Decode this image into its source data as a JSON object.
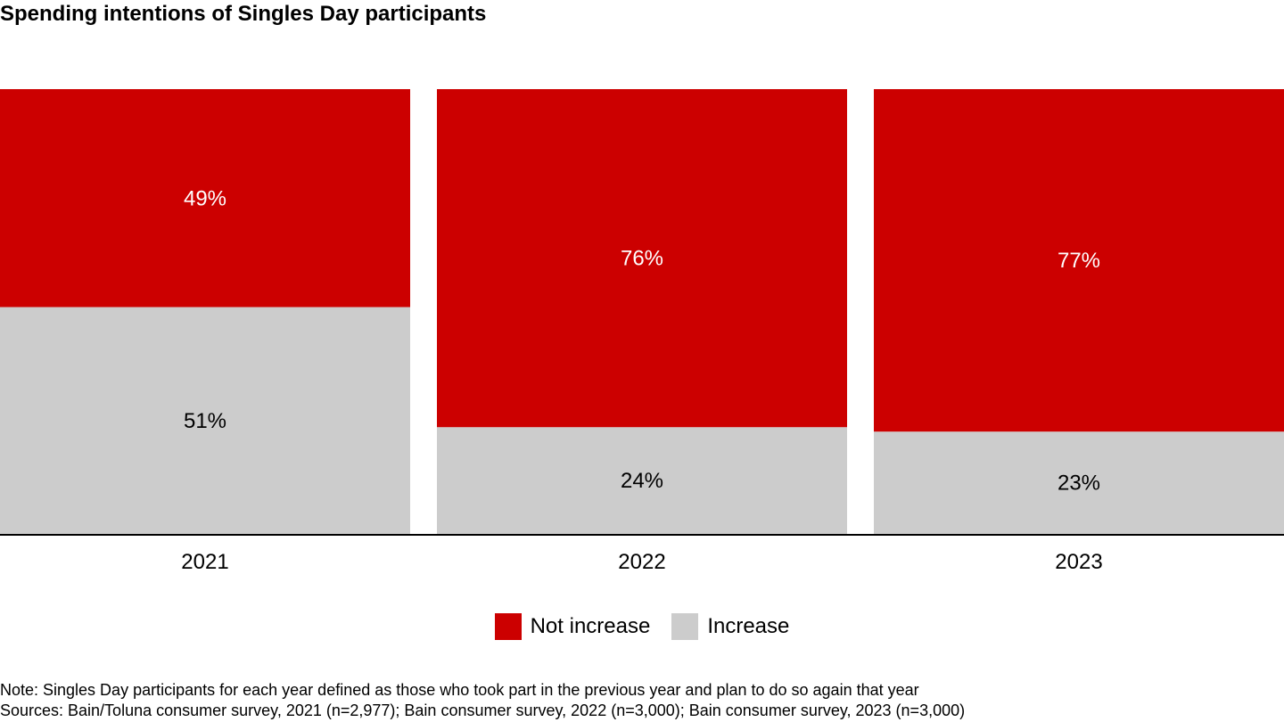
{
  "chart_data": {
    "type": "bar",
    "stacked": true,
    "title": "Spending intentions of Singles Day participants",
    "categories": [
      "2021",
      "2022",
      "2023"
    ],
    "series": [
      {
        "name": "Increase",
        "values": [
          51,
          24,
          23
        ],
        "labels": [
          "51%",
          "24%",
          "23%"
        ],
        "color": "#cccccc",
        "label_color": "#000000"
      },
      {
        "name": "Not increase",
        "values": [
          49,
          76,
          77
        ],
        "labels": [
          "49%",
          "76%",
          "77%"
        ],
        "color": "#cc0000",
        "label_color": "#ffffff"
      }
    ],
    "ylim": [
      0,
      100
    ],
    "legend": [
      "Not increase",
      "Increase"
    ],
    "legend_position": "bottom",
    "grid": false
  },
  "footer": {
    "note": "Note: Singles Day participants for each year defined as those who took part in the previous year and plan to do so again that year",
    "sources": "Sources: Bain/Toluna consumer survey, 2021 (n=2,977); Bain consumer survey, 2022 (n=3,000); Bain consumer survey, 2023 (n=3,000)"
  }
}
